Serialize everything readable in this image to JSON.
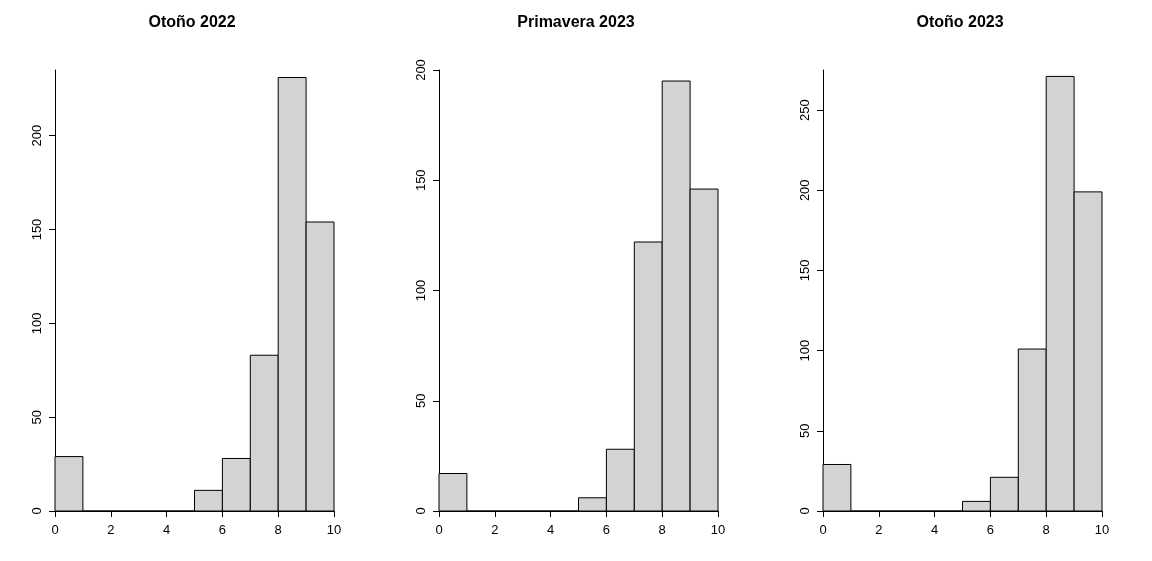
{
  "chart_data": [
    {
      "type": "histogram",
      "title": "Otoño 2022",
      "bins": [
        0,
        1,
        2,
        3,
        4,
        5,
        6,
        7,
        8,
        9,
        10
      ],
      "values": [
        29,
        0,
        0,
        0,
        0,
        11,
        28,
        83,
        231,
        154
      ],
      "color": "#d3d3d3",
      "xlim": [
        0,
        10
      ],
      "xticks": [
        0,
        2,
        4,
        6,
        8,
        10
      ],
      "ylim": [
        0,
        235
      ],
      "yticks": [
        0,
        50,
        100,
        150,
        200
      ]
    },
    {
      "type": "histogram",
      "title": "Primavera 2023",
      "bins": [
        0,
        1,
        2,
        3,
        4,
        5,
        6,
        7,
        8,
        9,
        10
      ],
      "values": [
        17,
        0,
        0,
        0,
        0,
        6,
        28,
        122,
        195,
        146
      ],
      "color": "#d3d3d3",
      "xlim": [
        0,
        10
      ],
      "xticks": [
        0,
        2,
        4,
        6,
        8,
        10
      ],
      "ylim": [
        0,
        200
      ],
      "yticks": [
        0,
        50,
        100,
        150,
        200
      ]
    },
    {
      "type": "histogram",
      "title": "Otoño 2023",
      "bins": [
        0,
        1,
        2,
        3,
        4,
        5,
        6,
        7,
        8,
        9,
        10
      ],
      "values": [
        29,
        0,
        0,
        0,
        0,
        6,
        21,
        101,
        271,
        199
      ],
      "color": "#d3d3d3",
      "xlim": [
        0,
        10
      ],
      "xticks": [
        0,
        2,
        4,
        6,
        8,
        10
      ],
      "ylim": [
        0,
        275
      ],
      "yticks": [
        0,
        50,
        100,
        150,
        200,
        250
      ]
    }
  ]
}
